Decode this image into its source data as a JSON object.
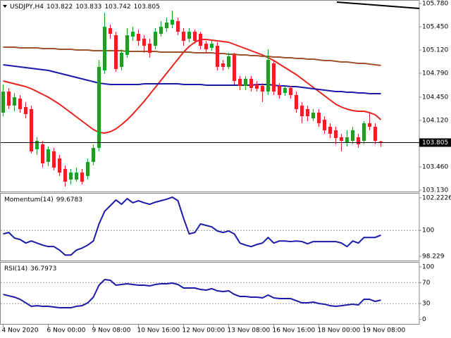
{
  "chart_data": [
    {
      "type": "candlestick",
      "title": "USDJPY,H4",
      "categories": [
        "4 Nov 2020",
        null,
        null,
        null,
        null,
        null,
        null,
        null,
        "6 Nov 00:00",
        null,
        null,
        null,
        null,
        null,
        null,
        null,
        "9 Nov 08:00",
        null,
        null,
        null,
        null,
        null,
        null,
        null,
        "10 Nov 16:00",
        null,
        null,
        null,
        null,
        null,
        null,
        null,
        "12 Nov 00:00",
        null,
        null,
        null,
        null,
        null,
        null,
        null,
        "13 Nov 08:00",
        null,
        null,
        null,
        null,
        null,
        null,
        null,
        "16 Nov 16:00",
        null,
        null,
        null,
        null,
        null,
        null,
        null,
        "18 Nov 00:00",
        null,
        null,
        null,
        null,
        null,
        null,
        null,
        "19 Nov 08:00",
        null,
        null,
        null
      ],
      "open": [
        104.23,
        104.53,
        104.33,
        104.43,
        104.31,
        104.28,
        103.71,
        103.78,
        103.53,
        103.68,
        103.58,
        103.43,
        103.28,
        103.28,
        103.38,
        103.33,
        103.53,
        103.73,
        104.83,
        105.43,
        105.33,
        104.88,
        105.05,
        105.31,
        105.35,
        105.28,
        105.21,
        105.18,
        105.35,
        105.43,
        105.48,
        105.53,
        105.38,
        105.28,
        105.38,
        105.35,
        105.21,
        105.15,
        105.18,
        104.93,
        104.88,
        105.05,
        104.71,
        104.61,
        104.71,
        104.63,
        104.61,
        104.53,
        104.93,
        104.61,
        104.51,
        104.58,
        104.48,
        104.33,
        104.28,
        104.15,
        104.23,
        104.13,
        104.03,
        103.98,
        103.88,
        103.8,
        103.83,
        103.88,
        103.83,
        104.08,
        104.03,
        103.822
      ],
      "high": [
        104.63,
        104.58,
        104.51,
        104.48,
        104.38,
        104.33,
        103.88,
        103.83,
        103.75,
        103.73,
        103.63,
        103.48,
        103.43,
        103.45,
        103.43,
        103.58,
        103.78,
        104.98,
        105.65,
        105.48,
        105.38,
        105.13,
        105.43,
        105.45,
        105.41,
        105.33,
        105.28,
        105.43,
        105.53,
        105.58,
        105.68,
        105.58,
        105.43,
        105.43,
        105.41,
        105.38,
        105.25,
        105.25,
        105.23,
        104.98,
        105.08,
        105.08,
        104.75,
        104.75,
        104.75,
        104.68,
        104.65,
        105.13,
        104.98,
        104.65,
        104.61,
        104.61,
        104.53,
        104.38,
        104.33,
        104.28,
        104.28,
        104.18,
        104.08,
        104.03,
        103.93,
        103.98,
        104.03,
        103.93,
        104.11,
        104.23,
        104.08,
        103.833
      ],
      "low": [
        104.18,
        104.28,
        104.25,
        104.23,
        104.15,
        103.65,
        103.63,
        103.45,
        103.47,
        103.41,
        103.33,
        103.18,
        103.21,
        103.25,
        103.21,
        103.28,
        103.48,
        103.68,
        104.78,
        105.28,
        104.81,
        104.83,
        105.01,
        105.25,
        105.18,
        105.08,
        105.01,
        105.13,
        105.31,
        105.38,
        105.43,
        105.33,
        105.18,
        105.23,
        105.21,
        105.13,
        105.08,
        105.11,
        104.83,
        104.83,
        104.85,
        104.63,
        104.55,
        104.55,
        104.53,
        104.53,
        104.38,
        104.48,
        104.48,
        104.43,
        104.47,
        104.43,
        104.23,
        104.08,
        104.11,
        104.11,
        104.03,
        103.93,
        103.87,
        103.78,
        103.68,
        103.75,
        103.78,
        103.73,
        103.78,
        103.98,
        103.78,
        103.742
      ],
      "close": [
        104.53,
        104.33,
        104.45,
        104.28,
        104.21,
        103.68,
        103.83,
        103.51,
        103.71,
        103.45,
        103.38,
        103.25,
        103.38,
        103.38,
        103.25,
        103.53,
        103.73,
        104.88,
        105.45,
        105.35,
        104.85,
        105.08,
        105.33,
        105.38,
        105.25,
        105.18,
        105.08,
        105.38,
        105.45,
        105.51,
        105.55,
        105.38,
        105.25,
        105.38,
        105.25,
        105.18,
        105.13,
        105.21,
        104.88,
        104.88,
        105.03,
        104.68,
        104.61,
        104.71,
        104.58,
        104.57,
        104.53,
        104.98,
        104.53,
        104.48,
        104.58,
        104.48,
        104.28,
        104.18,
        104.18,
        104.23,
        104.08,
        103.98,
        103.93,
        103.87,
        103.83,
        103.88,
        103.98,
        103.78,
        104.08,
        104.03,
        103.83,
        103.805
      ],
      "up_color": "#1ea01e",
      "down_color": "#e8231f",
      "series": [
        {
          "color": "#e8231f",
          "values": [
            104.68,
            104.66,
            104.64,
            104.62,
            104.6,
            104.57,
            104.53,
            104.49,
            104.45,
            104.4,
            104.35,
            104.29,
            104.23,
            104.17,
            104.11,
            104.05,
            103.99,
            103.95,
            103.94,
            103.96,
            104.0,
            104.06,
            104.13,
            104.21,
            104.3,
            104.39,
            104.49,
            104.59,
            104.69,
            104.79,
            104.89,
            104.99,
            105.09,
            105.17,
            105.23,
            105.27,
            105.27,
            105.26,
            105.25,
            105.24,
            105.23,
            105.2,
            105.17,
            105.14,
            105.11,
            105.08,
            105.05,
            105.01,
            104.97,
            104.92,
            104.87,
            104.82,
            104.77,
            104.71,
            104.65,
            104.59,
            104.53,
            104.47,
            104.41,
            104.35,
            104.31,
            104.28,
            104.26,
            104.25,
            104.25,
            104.23,
            104.2,
            104.13
          ]
        },
        {
          "color": "#1a1aa8",
          "values": [
            104.91,
            104.9,
            104.89,
            104.88,
            104.87,
            104.86,
            104.85,
            104.84,
            104.83,
            104.81,
            104.79,
            104.77,
            104.75,
            104.73,
            104.71,
            104.69,
            104.67,
            104.65,
            104.64,
            104.63,
            104.63,
            104.63,
            104.63,
            104.63,
            104.63,
            104.64,
            104.64,
            104.64,
            104.64,
            104.64,
            104.64,
            104.64,
            104.63,
            104.63,
            104.63,
            104.63,
            104.62,
            104.62,
            104.62,
            104.62,
            104.62,
            104.62,
            104.62,
            104.62,
            104.62,
            104.63,
            104.63,
            104.63,
            104.62,
            104.61,
            104.61,
            104.6,
            104.6,
            104.59,
            104.58,
            104.57,
            104.56,
            104.55,
            104.54,
            104.53,
            104.53,
            104.52,
            104.52,
            104.51,
            104.51,
            104.5,
            104.5,
            104.5
          ]
        },
        {
          "color": "#a0522d",
          "values": [
            105.16,
            105.16,
            105.16,
            105.15,
            105.15,
            105.15,
            105.15,
            105.14,
            105.14,
            105.14,
            105.13,
            105.13,
            105.13,
            105.12,
            105.12,
            105.12,
            105.11,
            105.11,
            105.11,
            105.11,
            105.11,
            105.11,
            105.1,
            105.1,
            105.1,
            105.1,
            105.1,
            105.1,
            105.09,
            105.09,
            105.09,
            105.09,
            105.09,
            105.09,
            105.08,
            105.08,
            105.08,
            105.08,
            105.07,
            105.07,
            105.06,
            105.06,
            105.05,
            105.05,
            105.04,
            105.04,
            105.03,
            105.03,
            105.02,
            105.02,
            105.01,
            105.01,
            105.0,
            105.0,
            104.99,
            104.99,
            104.98,
            104.97,
            104.97,
            104.96,
            104.95,
            104.95,
            104.94,
            104.93,
            104.93,
            104.92,
            104.91,
            104.9
          ]
        }
      ],
      "ylim": [
        103.11,
        105.83
      ],
      "yticks": [
        {
          "value": 105.78,
          "label": "105.780"
        },
        {
          "value": 105.45,
          "label": "105.450"
        },
        {
          "value": 105.12,
          "label": "105.120"
        },
        {
          "value": 104.79,
          "label": "104.790"
        },
        {
          "value": 104.45,
          "label": "104.450"
        },
        {
          "value": 104.12,
          "label": "104.120"
        },
        {
          "value": 103.46,
          "label": "103.460"
        },
        {
          "value": 103.13,
          "label": "103.130"
        }
      ],
      "grid": false
    },
    {
      "type": "line",
      "title": "Momentum(14)",
      "series": [
        {
          "color": "#1a1aa8",
          "values": [
            99.76,
            99.86,
            99.48,
            99.38,
            99.14,
            99.28,
            99.14,
            99.0,
            98.9,
            98.9,
            98.66,
            98.32,
            98.32,
            98.66,
            98.8,
            99.0,
            99.28,
            100.44,
            101.3,
            101.68,
            102.07,
            101.78,
            102.16,
            101.88,
            102.02,
            101.88,
            101.78,
            101.92,
            102.02,
            102.12,
            102.26,
            102.02,
            100.82,
            99.76,
            99.86,
            100.44,
            100.34,
            100.24,
            99.96,
            99.86,
            99.96,
            99.76,
            99.14,
            99.0,
            98.9,
            99.04,
            99.14,
            99.52,
            99.14,
            99.28,
            99.28,
            99.24,
            99.28,
            99.24,
            99.09,
            99.24,
            99.24,
            99.24,
            99.24,
            99.24,
            99.14,
            98.9,
            99.28,
            99.14,
            99.52,
            99.52,
            99.52,
            99.6783
          ]
        }
      ],
      "ylim": [
        97.95,
        102.5
      ],
      "yticks": [
        102.2226,
        100,
        98.229
      ],
      "levels": [
        100
      ],
      "grid": false
    },
    {
      "type": "line",
      "title": "RSI(14)",
      "series": [
        {
          "color": "#1a1aa8",
          "values": [
            47.6,
            44.9,
            42.3,
            38.2,
            31.5,
            24.8,
            26.1,
            24.8,
            24.8,
            23.5,
            22.1,
            22.1,
            22.1,
            24.8,
            26.1,
            31.5,
            42.3,
            65.1,
            75.8,
            74.5,
            65.1,
            66.4,
            67.8,
            66.4,
            65.1,
            65.1,
            63.7,
            66.4,
            67.8,
            67.8,
            69.1,
            66.4,
            59.7,
            59.7,
            59.7,
            57.0,
            55.7,
            58.4,
            54.3,
            53.0,
            54.3,
            47.6,
            43.6,
            43.6,
            42.3,
            42.3,
            40.9,
            46.3,
            40.9,
            39.6,
            39.6,
            39.6,
            35.5,
            31.5,
            31.5,
            32.9,
            30.2,
            28.8,
            26.1,
            24.8,
            26.1,
            27.5,
            28.8,
            27.5,
            38.2,
            38.2,
            34.2,
            36.7973
          ]
        }
      ],
      "ylim": [
        -6,
        104
      ],
      "yticks": [
        100,
        70,
        30,
        0
      ],
      "levels": [
        70,
        30
      ],
      "grid": false
    }
  ]
}
